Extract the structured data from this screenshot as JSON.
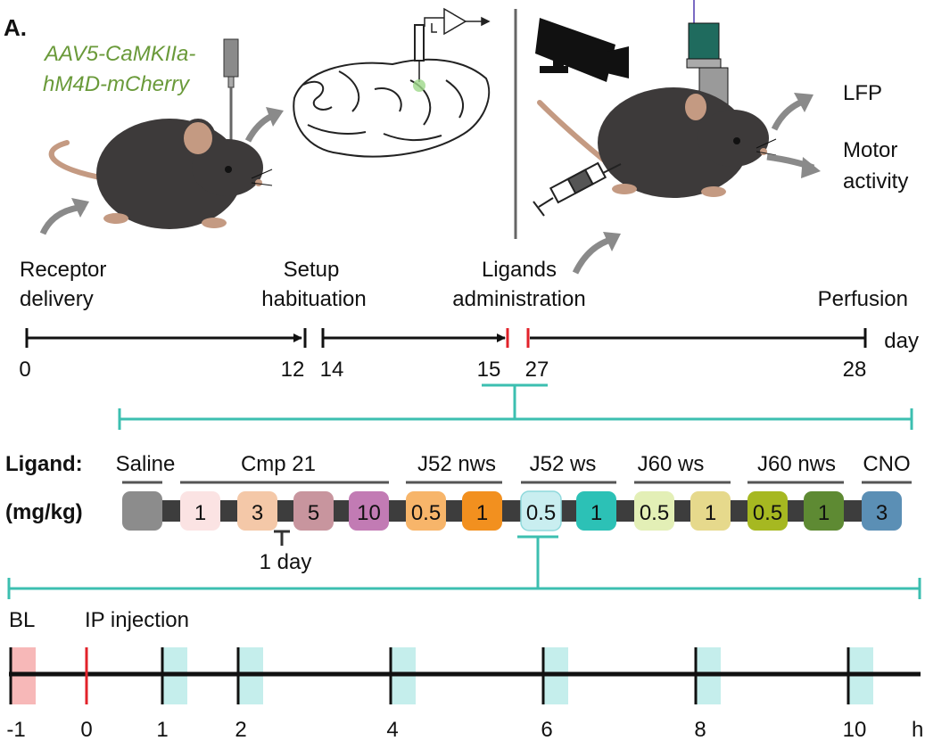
{
  "panel_label": "A.",
  "virus_label_line1": "AAV5-CaMKIIa-",
  "virus_label_line2": "hM4D-mCherry",
  "outputs": {
    "lfp": "LFP",
    "motor_line1": "Motor",
    "motor_line2": "activity"
  },
  "stages": {
    "receptor_line1": "Receptor",
    "receptor_line2": "delivery",
    "setup_line1": "Setup",
    "setup_line2": "habituation",
    "ligands_line1": "Ligands",
    "ligands_line2": "administration",
    "perfusion": "Perfusion"
  },
  "timeline_days": {
    "unit": "day",
    "ticks": [
      "0",
      "12",
      "14",
      "15",
      "27",
      "28"
    ]
  },
  "ligand_section": {
    "ligand_label": "Ligand:",
    "dose_label": "(mg/kg)",
    "interval_label": "1 day",
    "groups": [
      {
        "name": "Saline"
      },
      {
        "name": "Cmp 21"
      },
      {
        "name": "J52 nws"
      },
      {
        "name": "J52 ws"
      },
      {
        "name": "J60 ws"
      },
      {
        "name": "J60 nws"
      },
      {
        "name": "CNO"
      }
    ],
    "doses": [
      {
        "label": "",
        "color": "#8c8c8c"
      },
      {
        "label": "1",
        "color": "#fbe3e3"
      },
      {
        "label": "3",
        "color": "#f4c8a8"
      },
      {
        "label": "5",
        "color": "#c8959e"
      },
      {
        "label": "10",
        "color": "#c27bb4"
      },
      {
        "label": "0.5",
        "color": "#f7b56a"
      },
      {
        "label": "1",
        "color": "#f2901f"
      },
      {
        "label": "0.5",
        "color": "#c9eef0"
      },
      {
        "label": "1",
        "color": "#2cc1b6"
      },
      {
        "label": "0.5",
        "color": "#e3efb6"
      },
      {
        "label": "1",
        "color": "#e6d98c"
      },
      {
        "label": "0.5",
        "color": "#a6b821"
      },
      {
        "label": "1",
        "color": "#5e8a33"
      },
      {
        "label": "3",
        "color": "#5b8fb5"
      }
    ]
  },
  "hour_timeline": {
    "baseline_label": "BL",
    "injection_label": "IP injection",
    "unit": "h",
    "ticks": [
      "-1",
      "0",
      "1",
      "2",
      "4",
      "6",
      "8",
      "10"
    ]
  },
  "colors": {
    "accent_teal": "#3cbfb0",
    "highlight_red": "#e2222a",
    "virus_green": "#6a9a3a",
    "baseline_pink": "#f7b8b8",
    "window_cyan": "#c5eeec",
    "mouse_body": "#3d3a3a",
    "mouse_skin": "#c49a82"
  }
}
